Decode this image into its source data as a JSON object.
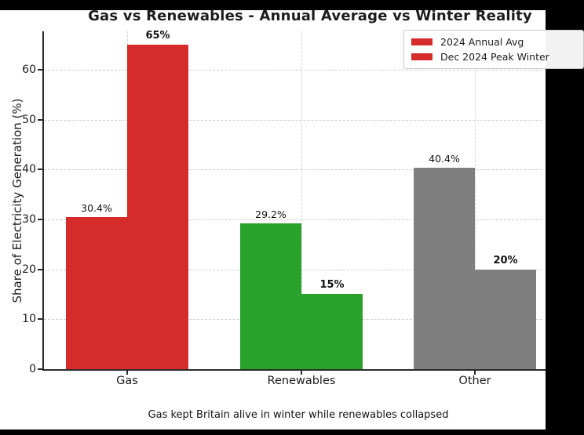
{
  "window": {
    "background": "#ffffff",
    "letterbox_color": "#000000"
  },
  "chart_data": {
    "type": "bar",
    "title": "Gas vs Renewables - Annual Average vs Winter Reality",
    "ylabel": "Share of Electricity Generation (%)",
    "xlabel": "",
    "caption": "Gas kept Britain alive in winter while renewables collapsed",
    "categories": [
      "Gas",
      "Renewables",
      "Other"
    ],
    "series": [
      {
        "name": "2024 Annual Avg",
        "values": [
          30.4,
          29.2,
          40.4
        ],
        "labels": [
          "30.4%",
          "29.2%",
          "40.4%"
        ],
        "label_bold": false
      },
      {
        "name": "Dec 2024 Peak Winter",
        "values": [
          65,
          15,
          20
        ],
        "labels": [
          "65%",
          "15%",
          "20%"
        ],
        "label_bold": true
      }
    ],
    "category_colors": [
      "#d62b2b",
      "#2aa12a",
      "#7f7f7f"
    ],
    "legend_swatch_color": "#d62b2b",
    "legend_position": "upper right",
    "ylim": [
      0,
      67.5
    ],
    "yticks": [
      0,
      10,
      20,
      30,
      40,
      50,
      60
    ],
    "grid": true,
    "grid_style": "dashed"
  }
}
